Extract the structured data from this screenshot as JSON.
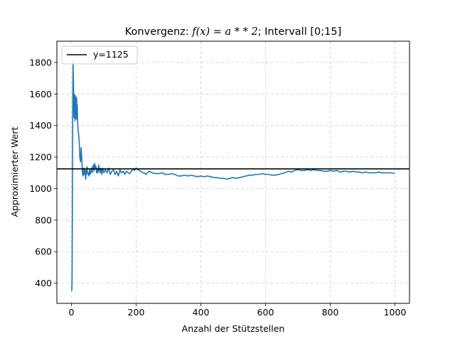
{
  "chart_data": {
    "type": "line",
    "title": "Konvergenz: f(x) = a * * 2; Intervall [0;15]",
    "title_parts": {
      "prefix": "Konvergenz: ",
      "math": "f(x) = a * * 2",
      "suffix": "; Intervall [0;15]"
    },
    "xlabel": "Anzahl der Stützstellen",
    "ylabel": "Approximierter Wert",
    "xlim": [
      -45,
      1045
    ],
    "ylim": [
      272,
      1935
    ],
    "xticks": [
      0,
      200,
      400,
      600,
      800,
      1000
    ],
    "yticks": [
      400,
      600,
      800,
      1000,
      1200,
      1400,
      1600,
      1800
    ],
    "grid": true,
    "legend": {
      "placement": "top-left",
      "entries": [
        "y=1125"
      ]
    },
    "series": [
      {
        "kind": "approximation",
        "color": "#1f77b4",
        "x": [
          1,
          2,
          3,
          4,
          5,
          6,
          7,
          8,
          9,
          10,
          11,
          12,
          13,
          14,
          15,
          16,
          17,
          18,
          19,
          20,
          22,
          24,
          26,
          28,
          30,
          32,
          34,
          36,
          38,
          40,
          42,
          44,
          46,
          48,
          50,
          52,
          54,
          56,
          58,
          60,
          62,
          64,
          66,
          68,
          70,
          72,
          74,
          76,
          78,
          80,
          82,
          84,
          86,
          88,
          90,
          92,
          94,
          96,
          98,
          100,
          105,
          110,
          115,
          120,
          125,
          130,
          135,
          140,
          145,
          150,
          155,
          160,
          165,
          170,
          175,
          180,
          185,
          190,
          195,
          200,
          205,
          210,
          215,
          220,
          225,
          230,
          240,
          250,
          260,
          270,
          280,
          290,
          300,
          310,
          320,
          330,
          340,
          350,
          360,
          370,
          380,
          390,
          400,
          410,
          420,
          430,
          440,
          450,
          460,
          470,
          480,
          490,
          500,
          510,
          520,
          530,
          540,
          550,
          560,
          570,
          580,
          590,
          600,
          610,
          620,
          630,
          640,
          650,
          660,
          670,
          680,
          690,
          700,
          710,
          720,
          730,
          740,
          750,
          760,
          770,
          780,
          790,
          800,
          810,
          820,
          830,
          840,
          850,
          860,
          870,
          880,
          890,
          900,
          910,
          920,
          930,
          940,
          950,
          960,
          970,
          980,
          990,
          1000
        ],
        "y": [
          350,
          420,
          900,
          1500,
          1810,
          1700,
          1560,
          1450,
          1600,
          1520,
          1430,
          1590,
          1480,
          1560,
          1440,
          1580,
          1500,
          1530,
          1440,
          1380,
          1350,
          1300,
          1200,
          1170,
          1260,
          1190,
          1100,
          1080,
          1130,
          1090,
          1120,
          1060,
          1110,
          1140,
          1090,
          1100,
          1080,
          1120,
          1090,
          1110,
          1130,
          1100,
          1140,
          1150,
          1110,
          1160,
          1130,
          1140,
          1100,
          1120,
          1100,
          1150,
          1110,
          1130,
          1100,
          1120,
          1090,
          1130,
          1120,
          1100,
          1120,
          1100,
          1130,
          1090,
          1110,
          1120,
          1090,
          1110,
          1080,
          1120,
          1100,
          1110,
          1090,
          1110,
          1100,
          1095,
          1110,
          1120,
          1115,
          1130,
          1120,
          1115,
          1110,
          1100,
          1100,
          1090,
          1110,
          1100,
          1095,
          1095,
          1100,
          1090,
          1090,
          1095,
          1090,
          1080,
          1080,
          1085,
          1080,
          1085,
          1080,
          1075,
          1080,
          1075,
          1080,
          1075,
          1070,
          1070,
          1065,
          1065,
          1060,
          1065,
          1070,
          1065,
          1070,
          1075,
          1080,
          1085,
          1085,
          1090,
          1090,
          1095,
          1090,
          1090,
          1085,
          1085,
          1090,
          1095,
          1100,
          1110,
          1105,
          1115,
          1120,
          1115,
          1115,
          1120,
          1115,
          1120,
          1115,
          1115,
          1110,
          1110,
          1115,
          1110,
          1115,
          1105,
          1110,
          1110,
          1105,
          1110,
          1105,
          1105,
          1100,
          1105,
          1100,
          1100,
          1100,
          1105,
          1100,
          1100,
          1100,
          1100,
          1095
        ]
      },
      {
        "kind": "reference",
        "name": "y=1125",
        "color": "#000000",
        "y": 1125
      }
    ]
  }
}
